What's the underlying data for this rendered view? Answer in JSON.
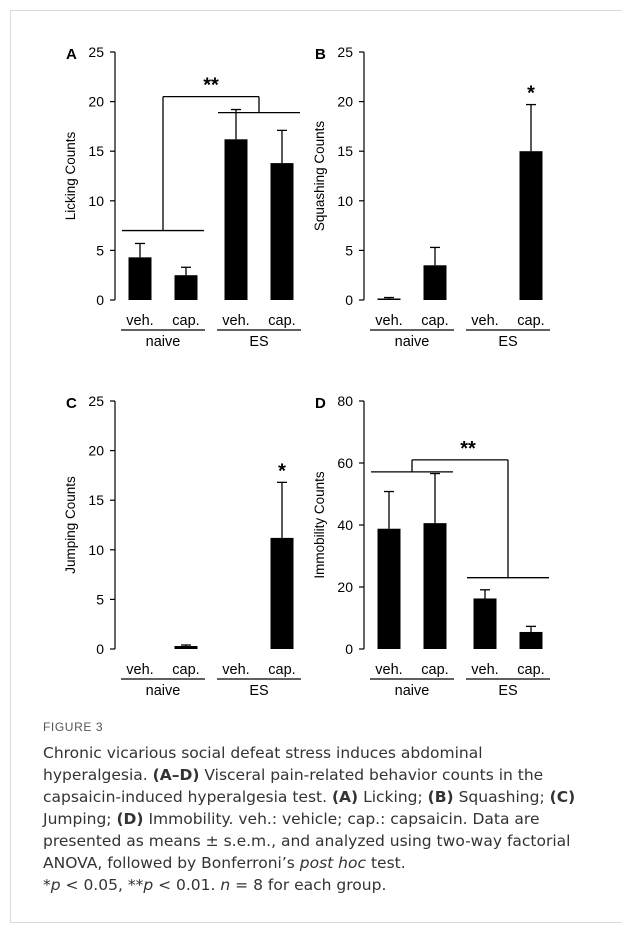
{
  "figure": {
    "label": "FIGURE 3",
    "caption": {
      "title": "Chronic vicarious social defeat stress induces abdominal hyperalgesia.",
      "p1_ref": "(A–D)",
      "p1_text": "Visceral pain-related behavior counts in the capsaicin-induced hyperalgesia test.",
      "a_ref": "(A)",
      "a_text": "Licking;",
      "b_ref": "(B)",
      "b_text": "Squashing;",
      "c_ref": "(C)",
      "c_text": "Jumping;",
      "d_ref": "(D)",
      "d_text": "Immobility. veh.: vehicle; cap.: capsaicin. Data are presented as means ± s.e.m., and analyzed using two-way factorial ANOVA, followed by Bonferroni’s",
      "posthoc": "post hoc",
      "after_posthoc": "test.",
      "sig1_star": "*",
      "p_symbol": "p",
      "sig1_text": "< 0.05,",
      "sig2_star": "**",
      "sig2_text": "< 0.01.",
      "n_symbol": "n",
      "n_text": "= 8 for each group."
    }
  },
  "colors": {
    "bar": "#000000",
    "axis": "#000000",
    "caption_label": "#555555",
    "caption_text": "#333333",
    "frame": "#d9d9d9"
  },
  "chart_data": [
    {
      "type": "bar",
      "panel": "A",
      "ylabel": "Licking Counts",
      "ylim": [
        0,
        25
      ],
      "yticks": [
        0,
        5,
        10,
        15,
        20,
        25
      ],
      "categories": [
        "veh.",
        "cap.",
        "veh.",
        "cap."
      ],
      "groups": [
        "naive",
        "ES"
      ],
      "values": [
        4.3,
        2.5,
        16.2,
        13.8
      ],
      "errors": [
        1.4,
        0.8,
        3.0,
        3.3
      ],
      "significance": {
        "label": "**",
        "type": "group",
        "level": 20.5,
        "left_level": 7.0
      }
    },
    {
      "type": "bar",
      "panel": "B",
      "ylabel": "Squashing Counts",
      "ylim": [
        0,
        25
      ],
      "yticks": [
        0,
        5,
        10,
        15,
        20,
        25
      ],
      "categories": [
        "veh.",
        "cap.",
        "veh.",
        "cap."
      ],
      "groups": [
        "naive",
        "ES"
      ],
      "values": [
        0.15,
        3.5,
        0,
        15.0
      ],
      "errors": [
        0.1,
        1.8,
        0,
        4.7
      ],
      "significance": {
        "label": "*",
        "type": "single",
        "bar_index": 3
      }
    },
    {
      "type": "bar",
      "panel": "C",
      "ylabel": "Jumping Counts",
      "ylim": [
        0,
        25
      ],
      "yticks": [
        0,
        5,
        10,
        15,
        20,
        25
      ],
      "categories": [
        "veh.",
        "cap.",
        "veh.",
        "cap."
      ],
      "groups": [
        "naive",
        "ES"
      ],
      "values": [
        0,
        0.3,
        0,
        11.2
      ],
      "errors": [
        0,
        0.1,
        0,
        5.6
      ],
      "significance": {
        "label": "*",
        "type": "single",
        "bar_index": 3
      }
    },
    {
      "type": "bar",
      "panel": "D",
      "ylabel": "Immobility Counts",
      "ylim": [
        0,
        80
      ],
      "yticks": [
        0,
        20,
        40,
        60,
        80
      ],
      "categories": [
        "veh.",
        "cap.",
        "veh.",
        "cap."
      ],
      "groups": [
        "naive",
        "ES"
      ],
      "values": [
        38.8,
        40.6,
        16.3,
        5.5
      ],
      "errors": [
        12.0,
        16.0,
        2.8,
        1.8
      ],
      "significance": {
        "label": "**",
        "type": "group",
        "level": 61.0,
        "right_level": 23.0
      }
    }
  ]
}
